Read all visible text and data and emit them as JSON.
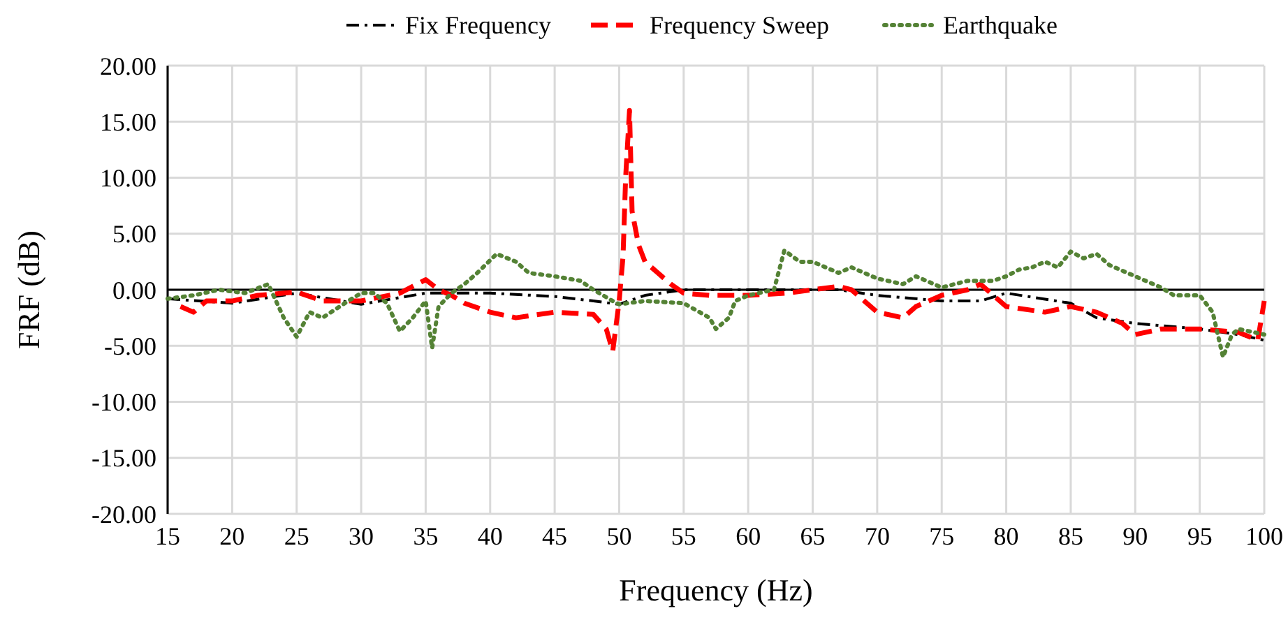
{
  "chart_data": {
    "type": "line",
    "xlabel": "Frequency (Hz)",
    "ylabel": "FRF (dB)",
    "xlim": [
      15,
      100
    ],
    "ylim": [
      -20,
      20
    ],
    "xticks": [
      15,
      20,
      25,
      30,
      35,
      40,
      45,
      50,
      55,
      60,
      65,
      70,
      75,
      80,
      85,
      90,
      95,
      100
    ],
    "yticks": [
      {
        "value": -20,
        "label": "-20.00"
      },
      {
        "value": -15,
        "label": "-15.00"
      },
      {
        "value": -10,
        "label": "-10.00"
      },
      {
        "value": -5,
        "label": "-5.00"
      },
      {
        "value": 0,
        "label": "0.00"
      },
      {
        "value": 5,
        "label": "5.00"
      },
      {
        "value": 10,
        "label": "10.00"
      },
      {
        "value": 15,
        "label": "15.00"
      },
      {
        "value": 20,
        "label": "20.00"
      }
    ],
    "grid": true,
    "legend": "top",
    "marker": "none",
    "series": [
      {
        "name": "Fix Frequency",
        "color": "#000000",
        "line_style": "dashdot",
        "x": [
          15,
          20,
          25,
          30,
          35,
          40,
          45,
          48,
          50,
          52,
          55,
          60,
          65,
          67,
          70,
          75,
          78,
          80,
          85,
          87,
          90,
          95,
          98,
          100
        ],
        "values": [
          -0.8,
          -1.2,
          -0.3,
          -1.3,
          -0.3,
          -0.3,
          -0.6,
          -1,
          -1.3,
          -0.5,
          0,
          0,
          0,
          0,
          -0.5,
          -1,
          -1,
          -0.3,
          -1.2,
          -2.5,
          -3,
          -3.5,
          -4,
          -4.5
        ]
      },
      {
        "name": "Frequency Sweep",
        "color": "#ff0000",
        "line_style": "dashed",
        "x": [
          16,
          17,
          18,
          20,
          22,
          25,
          27,
          30,
          33,
          35,
          36,
          37,
          38,
          40,
          42,
          45,
          48,
          49,
          49.5,
          50,
          50.3,
          50.5,
          50.8,
          51,
          51.5,
          52,
          53,
          54,
          55,
          57,
          60,
          63,
          65,
          67,
          68,
          70,
          72,
          73,
          75,
          77,
          78,
          79,
          80,
          83,
          85,
          87,
          89,
          90,
          92,
          95,
          98,
          99.5,
          100
        ],
        "values": [
          -1.5,
          -2,
          -1,
          -1,
          -0.5,
          -0.2,
          -1,
          -1,
          -0.3,
          0.9,
          0,
          -0.5,
          -1.2,
          -2,
          -2.5,
          -2,
          -2.2,
          -3.5,
          -5.5,
          -1,
          3,
          10,
          16,
          7,
          4,
          2.5,
          1.5,
          0.5,
          -0.3,
          -0.5,
          -0.5,
          -0.3,
          0,
          0.3,
          0,
          -2,
          -2.5,
          -1.5,
          -0.5,
          0,
          0.5,
          -0.5,
          -1.5,
          -2,
          -1.5,
          -2,
          -3,
          -4,
          -3.5,
          -3.5,
          -3.8,
          -4.5,
          -1
        ]
      },
      {
        "name": "Earthquake",
        "color": "#548235",
        "line_style": "dotted",
        "x": [
          15,
          17,
          19,
          21,
          22.8,
          24,
          25,
          26,
          27,
          29,
          30,
          31,
          32,
          33,
          34,
          35,
          35.5,
          36,
          37,
          38,
          39,
          40.5,
          42,
          43,
          45,
          47,
          48,
          49.5,
          50,
          52,
          55,
          57,
          57.5,
          58.5,
          59,
          60,
          62,
          62.8,
          64,
          65,
          67,
          68,
          70,
          72,
          73,
          75,
          77,
          79,
          80,
          81,
          82,
          83,
          84,
          85,
          86,
          87,
          88,
          90,
          92,
          93,
          95,
          96,
          96.8,
          97.5,
          98,
          100
        ],
        "values": [
          -0.8,
          -0.5,
          0,
          -0.3,
          0.5,
          -2.5,
          -4.2,
          -2,
          -2.5,
          -1,
          -0.3,
          -0.3,
          -1.2,
          -3.7,
          -2.5,
          -1,
          -5.2,
          -1.5,
          -0.3,
          0.5,
          1.5,
          3.2,
          2.5,
          1.5,
          1.2,
          0.8,
          0,
          -1,
          -1.3,
          -1,
          -1.2,
          -2.5,
          -3.5,
          -2.5,
          -1,
          -0.5,
          0,
          3.5,
          2.5,
          2.5,
          1.5,
          2,
          1,
          0.5,
          1.2,
          0.2,
          0.8,
          0.8,
          1.2,
          1.8,
          2,
          2.5,
          2,
          3.4,
          2.8,
          3.2,
          2.2,
          1.2,
          0.2,
          -0.5,
          -0.5,
          -2,
          -6,
          -4,
          -3.5,
          -4
        ]
      }
    ]
  }
}
